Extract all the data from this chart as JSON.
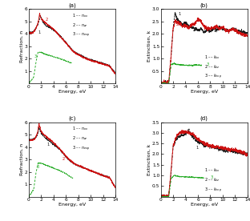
{
  "panels": [
    "(a)",
    "(b)",
    "(c)",
    "(d)"
  ],
  "xlim": [
    0,
    14
  ],
  "ylim_a": [
    0,
    6
  ],
  "ylim_b": [
    0,
    3.0
  ],
  "ylim_c": [
    0,
    6
  ],
  "ylim_d": [
    0,
    3.5
  ],
  "xlabel": "Energy, eV",
  "ylabel_n": "Refraction, n",
  "ylabel_k": "Extinction, k",
  "colors": {
    "1": "#1a1a1a",
    "2": "#cc1111",
    "3": "#22aa22"
  },
  "xticks": [
    0,
    2,
    4,
    6,
    8,
    10,
    12,
    14
  ],
  "yticks_a": [
    1,
    2,
    3,
    4,
    5,
    6
  ],
  "yticks_b": [
    0.5,
    1.0,
    1.5,
    2.0,
    2.5,
    3.0
  ],
  "yticks_c": [
    1,
    2,
    3,
    4,
    5,
    6
  ],
  "yticks_d": [
    0.5,
    1.0,
    1.5,
    2.0,
    2.5,
    3.0,
    3.5
  ]
}
